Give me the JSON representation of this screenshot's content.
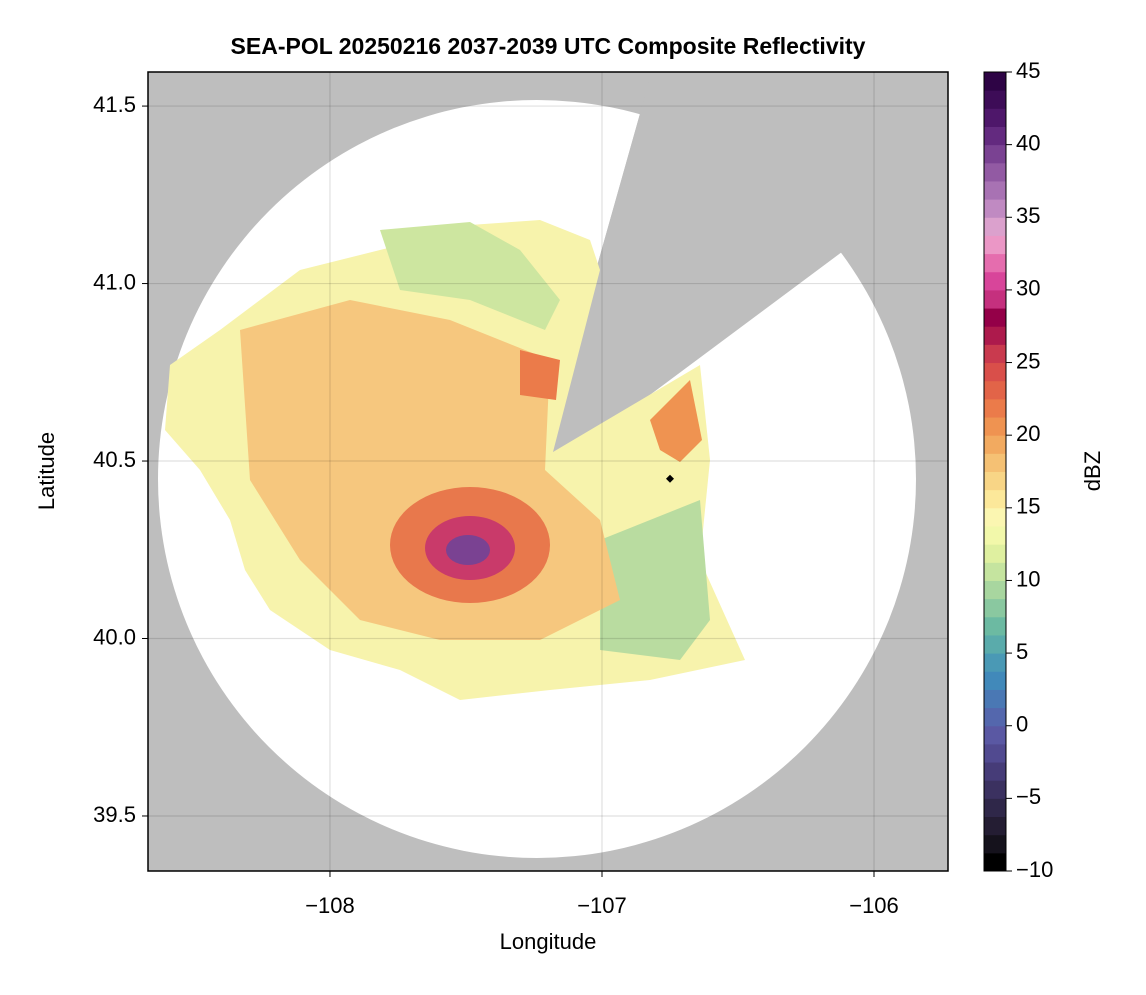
{
  "chart_data": {
    "type": "radar-map",
    "title": "SEA-POL 20250216 2037-2039 UTC Composite Reflectivity",
    "x_label": "Longitude",
    "y_label": "Latitude",
    "xlim": [
      -108.669,
      -105.728
    ],
    "ylim": [
      39.345,
      41.596
    ],
    "xticks": [
      {
        "value": -108,
        "label": "−108"
      },
      {
        "value": -107,
        "label": "−107"
      },
      {
        "value": -106,
        "label": "−106"
      }
    ],
    "yticks": [
      39.5,
      {
        "value": 40.0,
        "label": "40.0"
      },
      40.5,
      {
        "value": 41.0,
        "label": "41.0"
      },
      41.5
    ],
    "grid": true,
    "station": {
      "x": -106.75,
      "y": 40.45,
      "color": "#000000"
    },
    "colorbar": {
      "label": "dBZ",
      "clim": [
        -10,
        45
      ],
      "ticks": [
        {
          "value": -10,
          "label": "−10"
        },
        {
          "value": -5,
          "label": "−5"
        },
        0,
        5,
        10,
        15,
        20,
        25,
        30,
        35,
        40,
        45
      ],
      "colors": [
        "#000000",
        "#15121c",
        "#241d33",
        "#2f2749",
        "#3b3160",
        "#463c78",
        "#514a90",
        "#5a58a3",
        "#5467ad",
        "#4a78b4",
        "#4189ba",
        "#4a99b5",
        "#5aabab",
        "#6cbaa2",
        "#8ac8a0",
        "#a8d69f",
        "#c5e49f",
        "#dff0a0",
        "#f2f8aa",
        "#fbf6b1",
        "#fce89a",
        "#f8d586",
        "#f5c174",
        "#f2aa60",
        "#ef9351",
        "#eb7b4a",
        "#e26448",
        "#d94f4a",
        "#c93a4e",
        "#ad1a4c",
        "#940048",
        "#c5307e",
        "#d8459a",
        "#e56dae",
        "#eb97c6",
        "#dba1cd",
        "#c08ac2",
        "#a872b3",
        "#925aa3",
        "#7a4292",
        "#632a7f",
        "#4e176a",
        "#3d0c57",
        "#2e0445"
      ]
    }
  }
}
